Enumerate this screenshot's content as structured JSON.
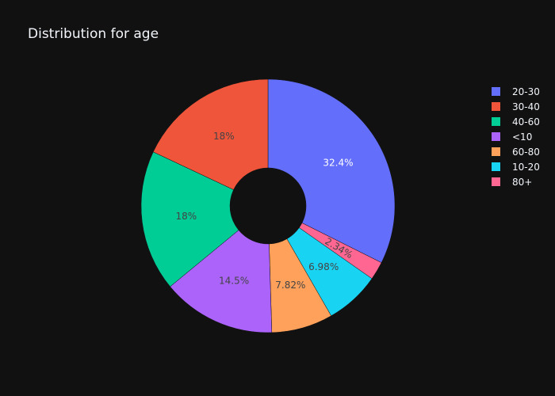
{
  "chart_data": {
    "type": "pie",
    "title": "Distribution for age",
    "hole": true,
    "legend_position": "right",
    "slices": [
      {
        "label": "20-30",
        "percent": 32.4,
        "text": "32.4%",
        "color": "#636efa",
        "text_color": "#ffffff"
      },
      {
        "label": "80+",
        "percent": 2.34,
        "text": "2.34%",
        "color": "#ff6692",
        "text_color": "#444444"
      },
      {
        "label": "10-20",
        "percent": 6.98,
        "text": "6.98%",
        "color": "#19d3f3",
        "text_color": "#444444"
      },
      {
        "label": "60-80",
        "percent": 7.82,
        "text": "7.82%",
        "color": "#ffa15a",
        "text_color": "#444444"
      },
      {
        "label": "<10",
        "percent": 14.5,
        "text": "14.5%",
        "color": "#ab63fa",
        "text_color": "#444444"
      },
      {
        "label": "40-60",
        "percent": 18,
        "text": "18%",
        "color": "#00cc96",
        "text_color": "#444444"
      },
      {
        "label": "30-40",
        "percent": 18,
        "text": "18%",
        "color": "#ef553b",
        "text_color": "#444444"
      }
    ],
    "legend": [
      {
        "label": "20-30",
        "color": "#636efa"
      },
      {
        "label": "30-40",
        "color": "#ef553b"
      },
      {
        "label": "40-60",
        "color": "#00cc96"
      },
      {
        "label": "<10",
        "color": "#ab63fa"
      },
      {
        "label": "60-80",
        "color": "#ffa15a"
      },
      {
        "label": "10-20",
        "color": "#19d3f3"
      },
      {
        "label": "80+",
        "color": "#ff6692"
      }
    ]
  },
  "colors": {
    "background": "#111111",
    "slice_border": "#111111"
  }
}
